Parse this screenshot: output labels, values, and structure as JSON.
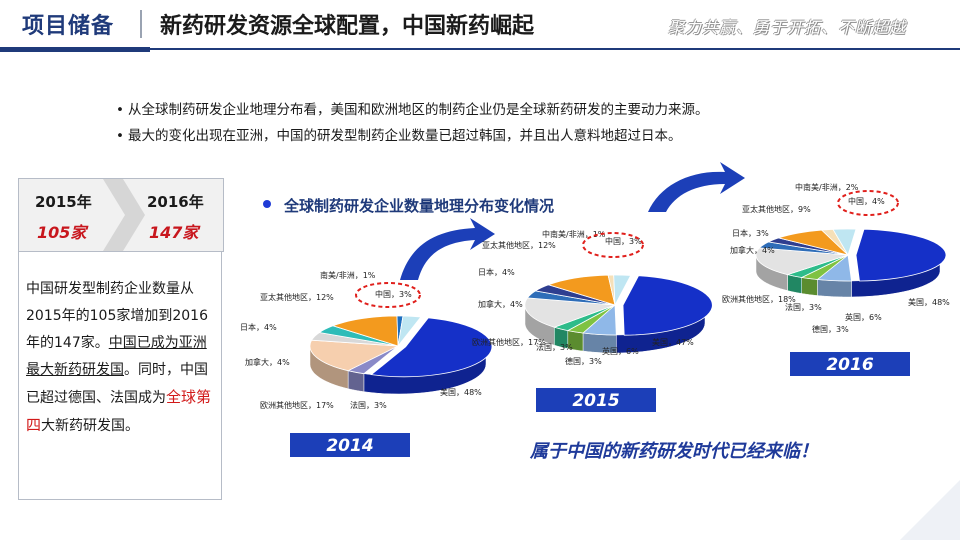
{
  "header": {
    "section": "项目储备",
    "title": "新药研发资源全球配置，中国新药崛起",
    "slogan": "聚力共赢、勇于开拓、不断超越"
  },
  "bullets": [
    "从全球制药研发企业地理分布看，美国和欧洲地区的制药企业仍是全球新药研发的主要动力来源。",
    "最大的变化出现在亚洲，中国的研发型制药企业数量已超过韩国，并且出人意料地超过日本。"
  ],
  "comparison": {
    "year_a": "2015年",
    "count_a": "105家",
    "year_b": "2016年",
    "count_b": "147家"
  },
  "paragraph": {
    "p1": "中国研发型制药企业数量从2015年的105家增加到2016年的147家。",
    "p2": "中国已成为亚洲最大新药研发国",
    "p3": "。同时，中国已超过德国、法国成为",
    "p4": "全球第四",
    "p5": "大新药研发国。"
  },
  "footer_note": "属于中国的新药研发时代已经来临！",
  "colors": {
    "accent": "#1f3a7a",
    "red": "#c8161d",
    "pie_blue": "#1530c8"
  },
  "chart_data": [
    {
      "type": "pie",
      "title": "全球制药研发企业数量地理分布变化情况",
      "year_label": "2014",
      "slices": [
        {
          "label": "美国",
          "value": 48,
          "text": "美国，48%",
          "color": "#1530c8"
        },
        {
          "label": "法国",
          "value": 3,
          "text": "法国，3%",
          "color": "#8a8ac8"
        },
        {
          "label": "欧洲其他地区",
          "value": 17,
          "text": "欧洲其他地区，17%",
          "color": "#f6cfae"
        },
        {
          "label": "加拿大",
          "value": 4,
          "text": "加拿大，4%",
          "color": "#d8d8d8"
        },
        {
          "label": "日本",
          "value": 4,
          "text": "日本，4%",
          "color": "#2ebcb8"
        },
        {
          "label": "亚太其他地区",
          "value": 12,
          "text": "亚太其他地区，12%",
          "color": "#f39a1e"
        },
        {
          "label": "南美/非洲",
          "value": 1,
          "text": "南美/非洲，1%",
          "color": "#1d6dbf"
        },
        {
          "label": "中国",
          "value": 3,
          "text": "中国，3%",
          "color": "#bfe6f2"
        }
      ]
    },
    {
      "type": "pie",
      "year_label": "2015",
      "slices": [
        {
          "label": "美国",
          "value": 47,
          "text": "美国，47%",
          "color": "#1530c8"
        },
        {
          "label": "英国",
          "value": 6,
          "text": "英国，6%",
          "color": "#8fb8e8"
        },
        {
          "label": "德国",
          "value": 3,
          "text": "德国，3%",
          "color": "#7fc241"
        },
        {
          "label": "法国",
          "value": 3,
          "text": "法国，3%",
          "color": "#2ebc8a"
        },
        {
          "label": "欧洲其他地区",
          "value": 17,
          "text": "欧洲其他地区，17%",
          "color": "#e3e3e3"
        },
        {
          "label": "加拿大",
          "value": 4,
          "text": "加拿大，4%",
          "color": "#2e6db8"
        },
        {
          "label": "日本",
          "value": 4,
          "text": "日本，4%",
          "color": "#2e3e90"
        },
        {
          "label": "亚太其他地区",
          "value": 12,
          "text": "亚太其他地区，12%",
          "color": "#f39a1e"
        },
        {
          "label": "中南美/非洲",
          "value": 1,
          "text": "中南美/非洲，1%",
          "color": "#f6e0b8"
        },
        {
          "label": "中国",
          "value": 3,
          "text": "中国，3%",
          "color": "#bfe6f2"
        }
      ]
    },
    {
      "type": "pie",
      "year_label": "2016",
      "slices": [
        {
          "label": "美国",
          "value": 48,
          "text": "美国，48%",
          "color": "#1530c8"
        },
        {
          "label": "英国",
          "value": 6,
          "text": "英国，6%",
          "color": "#8fb8e8"
        },
        {
          "label": "德国",
          "value": 3,
          "text": "德国，3%",
          "color": "#7fc241"
        },
        {
          "label": "法国",
          "value": 3,
          "text": "法国，3%",
          "color": "#2ebc8a"
        },
        {
          "label": "欧洲其他地区",
          "value": 18,
          "text": "欧洲其他地区，18%",
          "color": "#e3e3e3"
        },
        {
          "label": "加拿大",
          "value": 4,
          "text": "加拿大，4%",
          "color": "#2e6db8"
        },
        {
          "label": "日本",
          "value": 3,
          "text": "日本，3%",
          "color": "#2e3e90"
        },
        {
          "label": "亚太其他地区",
          "value": 9,
          "text": "亚太其他地区，9%",
          "color": "#f39a1e"
        },
        {
          "label": "中南美/非洲",
          "value": 2,
          "text": "中南美/非洲，2%",
          "color": "#f6e0b8"
        },
        {
          "label": "中国",
          "value": 4,
          "text": "中国，4%",
          "color": "#bfe6f2"
        }
      ]
    }
  ]
}
